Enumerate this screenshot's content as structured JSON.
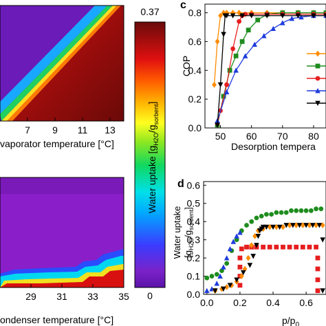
{
  "chart_data": [
    {
      "type": "heatmap",
      "xlabel": "vaporator temperature [°C]",
      "xticks": [
        "7",
        "9",
        "11",
        "13"
      ],
      "xlim": [
        5,
        14
      ],
      "ylim": [
        50,
        90
      ],
      "description_values": "diagonal boundary: low uptake (purple) upper-left, high uptake (dark red) lower-right"
    },
    {
      "type": "heatmap",
      "xlabel": "ondenser temperature [°C]",
      "xticks": [
        "29",
        "31",
        "33",
        "35"
      ],
      "xlim": [
        27,
        35
      ],
      "ylim": [
        0,
        10
      ]
    },
    {
      "type": "colorbar",
      "label_pre": "Water uptake [g",
      "label_sub1": "H2O",
      "label_mid": "/g",
      "label_sub2": "sorbent",
      "label_post": "]",
      "max_label": "0.37",
      "min_label": "0",
      "range": [
        0,
        0.37
      ]
    },
    {
      "type": "line",
      "panel_label": "c",
      "ylabel": "COP",
      "xlabel": "Desorption tempera",
      "xticks": [
        "50",
        "60",
        "70",
        "80"
      ],
      "yticks": [
        "0.0",
        "0.2",
        "0.4",
        "0.6",
        "0.8"
      ],
      "xlim": [
        45,
        84
      ],
      "ylim": [
        0,
        0.86
      ],
      "series": [
        {
          "color": "#ff8c00",
          "marker": "diamond",
          "x": [
            48,
            49,
            50,
            51,
            52,
            54,
            56,
            60,
            65,
            70,
            75,
            80,
            84
          ],
          "y": [
            0.3,
            0.6,
            0.78,
            0.8,
            0.8,
            0.8,
            0.8,
            0.8,
            0.8,
            0.8,
            0.8,
            0.8,
            0.8
          ]
        },
        {
          "color": "#1e8c1e",
          "marker": "square",
          "x": [
            49,
            51,
            53,
            55,
            57,
            59,
            62,
            65,
            70,
            75,
            80,
            84
          ],
          "y": [
            0.02,
            0.22,
            0.4,
            0.5,
            0.6,
            0.68,
            0.75,
            0.79,
            0.8,
            0.8,
            0.8,
            0.8
          ]
        },
        {
          "color": "#e61e1e",
          "marker": "circle",
          "x": [
            49,
            50,
            52,
            54,
            56,
            57,
            58,
            60,
            65,
            70,
            75,
            80,
            84
          ],
          "y": [
            0.03,
            0.12,
            0.3,
            0.55,
            0.74,
            0.78,
            0.79,
            0.79,
            0.79,
            0.79,
            0.79,
            0.79,
            0.79
          ]
        },
        {
          "color": "#1e3cdc",
          "marker": "triangle",
          "x": [
            49,
            52,
            55,
            58,
            61,
            64,
            67,
            70,
            73,
            76,
            80,
            84
          ],
          "y": [
            0.05,
            0.25,
            0.4,
            0.5,
            0.58,
            0.64,
            0.69,
            0.73,
            0.76,
            0.77,
            0.78,
            0.78
          ]
        },
        {
          "color": "#000000",
          "marker": "tri-down",
          "x": [
            49,
            50,
            51,
            51.5,
            52,
            54,
            57,
            60,
            65,
            70,
            75,
            80,
            84
          ],
          "y": [
            0.02,
            0.3,
            0.65,
            0.78,
            0.78,
            0.78,
            0.78,
            0.78,
            0.78,
            0.78,
            0.78,
            0.78,
            0.78
          ]
        }
      ]
    },
    {
      "type": "scatter",
      "panel_label": "d",
      "ylabel_pre": "Water uptake",
      "ylabel2_pre": "[g",
      "ylabel2_sub1": "H2O",
      "ylabel2_mid": "/g",
      "ylabel2_sub2": "sorbent",
      "ylabel2_post": "]",
      "xlabel_pre": "p/p",
      "xlabel_sub": "0",
      "xticks": [
        "0.0",
        "0.2",
        "0.4",
        "0.6"
      ],
      "yticks": [
        "0.0",
        "0.1",
        "0.2",
        "0.3",
        "0.4",
        "0.5",
        "0.6"
      ],
      "xlim": [
        -0.02,
        0.72
      ],
      "ylim": [
        0,
        0.62
      ],
      "series": [
        {
          "color": "#1e8c1e",
          "marker": "circle",
          "x": [
            0.0,
            0.03,
            0.06,
            0.09,
            0.12,
            0.15,
            0.18,
            0.21,
            0.24,
            0.27,
            0.3,
            0.33,
            0.36,
            0.39,
            0.42,
            0.45,
            0.48,
            0.51,
            0.54,
            0.57,
            0.6,
            0.63,
            0.66,
            0.69
          ],
          "y": [
            0.09,
            0.1,
            0.11,
            0.13,
            0.17,
            0.24,
            0.3,
            0.35,
            0.38,
            0.4,
            0.42,
            0.43,
            0.44,
            0.44,
            0.45,
            0.45,
            0.45,
            0.46,
            0.46,
            0.46,
            0.46,
            0.46,
            0.47,
            0.47
          ]
        },
        {
          "color": "#1e3cdc",
          "marker": "triangle",
          "x": [
            0.0,
            0.03,
            0.06,
            0.08,
            0.1,
            0.12,
            0.14,
            0.16,
            0.18,
            0.2
          ],
          "y": [
            0.02,
            0.03,
            0.06,
            0.1,
            0.15,
            0.2,
            0.25,
            0.29,
            0.32,
            0.34
          ]
        },
        {
          "color": "#e61e1e",
          "marker": "square",
          "x": [
            0.2,
            0.2,
            0.2,
            0.2,
            0.21,
            0.24,
            0.27,
            0.3,
            0.34,
            0.38,
            0.42,
            0.46,
            0.5,
            0.54,
            0.58,
            0.62,
            0.66,
            0.67,
            0.67,
            0.67,
            0.67
          ],
          "y": [
            0.05,
            0.1,
            0.15,
            0.2,
            0.25,
            0.26,
            0.26,
            0.26,
            0.26,
            0.26,
            0.26,
            0.26,
            0.26,
            0.26,
            0.26,
            0.26,
            0.26,
            0.2,
            0.14,
            0.08,
            0.02
          ]
        },
        {
          "color": "#ff8c00",
          "marker": "diamond",
          "x": [
            0.05,
            0.09,
            0.12,
            0.15,
            0.18,
            0.21,
            0.23,
            0.25,
            0.27,
            0.29,
            0.31,
            0.34,
            0.38,
            0.42,
            0.46,
            0.5,
            0.54,
            0.58,
            0.62,
            0.66,
            0.7
          ],
          "y": [
            0.02,
            0.03,
            0.04,
            0.05,
            0.07,
            0.1,
            0.14,
            0.2,
            0.27,
            0.32,
            0.35,
            0.36,
            0.37,
            0.37,
            0.37,
            0.38,
            0.38,
            0.38,
            0.38,
            0.38,
            0.38
          ]
        },
        {
          "color": "#000000",
          "marker": "tri-down",
          "x": [
            0.05,
            0.1,
            0.14,
            0.18,
            0.22,
            0.26,
            0.28,
            0.3,
            0.31,
            0.32,
            0.33,
            0.34,
            0.36,
            0.4,
            0.44,
            0.48,
            0.52,
            0.56,
            0.6,
            0.64,
            0.68,
            0.7,
            0.7
          ],
          "y": [
            0.02,
            0.03,
            0.05,
            0.08,
            0.12,
            0.16,
            0.21,
            0.27,
            0.32,
            0.35,
            0.36,
            0.37,
            0.37,
            0.37,
            0.37,
            0.38,
            0.38,
            0.38,
            0.38,
            0.38,
            0.38,
            0.3,
            0.02
          ]
        }
      ]
    }
  ]
}
